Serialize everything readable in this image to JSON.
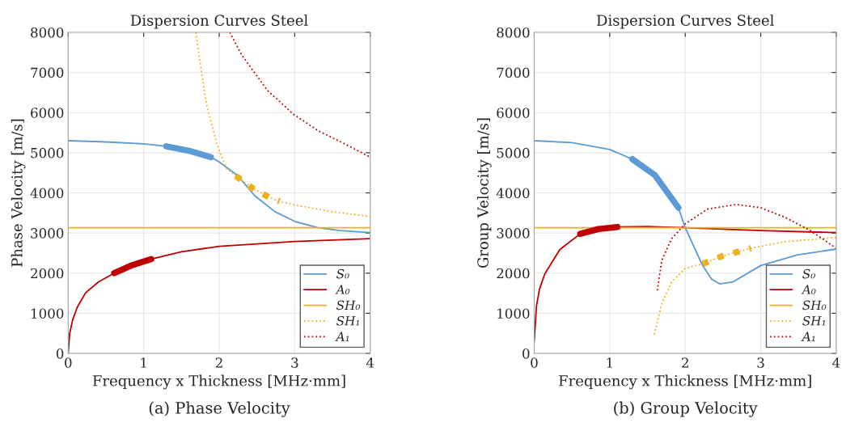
{
  "chart_data": [
    {
      "type": "line",
      "title": "Dispersion Curves Steel",
      "xlabel": "Frequency x Thickness [MHz·mm]",
      "ylabel": "Phase Velocity [m/s]",
      "xlim": [
        0,
        4
      ],
      "ylim": [
        0,
        8000
      ],
      "xticks": [
        0,
        1,
        2,
        3,
        4
      ],
      "yticks": [
        0,
        1000,
        2000,
        3000,
        4000,
        5000,
        6000,
        7000,
        8000
      ],
      "grid": true,
      "legend": "bottom right",
      "annotations": [
        "(a) Phase Velocity"
      ],
      "series": [
        {
          "name": "S₀",
          "color": "#5a9bd5",
          "line_style": "solid",
          "x": [
            0,
            0.5,
            1,
            1.3,
            1.6,
            1.89,
            2.0,
            2.24,
            2.47,
            2.74,
            3.0,
            3.31,
            3.6,
            4
          ],
          "values": [
            5300,
            5270,
            5220,
            5160,
            5050,
            4890,
            4770,
            4440,
            3930,
            3530,
            3290,
            3130,
            3060,
            3010
          ]
        },
        {
          "name": "A₀",
          "color": "#c00000",
          "line_style": "solid",
          "x": [
            0,
            0.02,
            0.06,
            0.12,
            0.23,
            0.4,
            0.61,
            0.85,
            1.1,
            1.5,
            2,
            3,
            4
          ],
          "values": [
            0,
            500,
            840,
            1150,
            1510,
            1780,
            2000,
            2200,
            2350,
            2530,
            2670,
            2790,
            2860
          ]
        },
        {
          "name": "SH₀",
          "color": "#edb120",
          "line_style": "solid",
          "x": [
            0,
            4
          ],
          "values": [
            3130,
            3130
          ]
        },
        {
          "name": "SH₁",
          "color": "#edb120",
          "line_style": "dotted",
          "x": [
            1.69,
            1.75,
            1.83,
            1.97,
            2.1,
            2.22,
            2.44,
            2.67,
            2.8,
            3.0,
            3.5,
            4
          ],
          "values": [
            8000,
            7200,
            6220,
            5210,
            4600,
            4420,
            4120,
            3880,
            3790,
            3700,
            3530,
            3410
          ]
        },
        {
          "name": "A₁",
          "color": "#c00000",
          "line_style": "dotted",
          "x": [
            2.14,
            2.3,
            2.64,
            2.99,
            3.31,
            3.6,
            4
          ],
          "values": [
            8000,
            7430,
            6550,
            5950,
            5550,
            5280,
            4890
          ]
        },
        {
          "color": "#5a9bd5",
          "line_style": "solid",
          "x": [
            1.3,
            1.6,
            1.89
          ],
          "values": [
            5160,
            5050,
            4890
          ]
        },
        {
          "color": "#c00000",
          "line_style": "solid",
          "x": [
            0.61,
            0.85,
            1.1
          ],
          "values": [
            2000,
            2200,
            2350
          ]
        },
        {
          "color": "#edb120",
          "line_style": "dotted",
          "x": [
            2.22,
            2.44,
            2.67,
            2.8
          ],
          "values": [
            4420,
            4120,
            3880,
            3790
          ]
        }
      ]
    },
    {
      "type": "line",
      "title": "Dispersion Curves Steel",
      "xlabel": "Frequency x Thickness [MHz·mm]",
      "ylabel": "Group Velocity [m/s]",
      "xlim": [
        0,
        4
      ],
      "ylim": [
        0,
        8000
      ],
      "xticks": [
        0,
        1,
        2,
        3,
        4
      ],
      "yticks": [
        0,
        1000,
        2000,
        3000,
        4000,
        5000,
        6000,
        7000,
        8000
      ],
      "grid": true,
      "legend": "bottom right",
      "annotations": [
        "(b) Group Velocity"
      ],
      "series": [
        {
          "name": "S₀",
          "color": "#5a9bd5",
          "line_style": "solid",
          "x": [
            0,
            0.5,
            1,
            1.3,
            1.6,
            1.91,
            2.0,
            2.23,
            2.35,
            2.46,
            2.63,
            3,
            3.48,
            4
          ],
          "values": [
            5300,
            5250,
            5080,
            4840,
            4440,
            3630,
            3130,
            2190,
            1850,
            1730,
            1780,
            2190,
            2450,
            2600
          ]
        },
        {
          "name": "A₀",
          "color": "#c00000",
          "line_style": "solid",
          "x": [
            0,
            0.03,
            0.07,
            0.14,
            0.34,
            0.61,
            0.85,
            1.1,
            1.5,
            2,
            3,
            4
          ],
          "values": [
            300,
            1180,
            1600,
            1980,
            2590,
            2980,
            3100,
            3150,
            3160,
            3130,
            3060,
            3010
          ]
        },
        {
          "name": "SH₀",
          "color": "#edb120",
          "line_style": "solid",
          "x": [
            0,
            4
          ],
          "values": [
            3130,
            3130
          ]
        },
        {
          "name": "SH₁",
          "color": "#edb120",
          "line_style": "dotted",
          "x": [
            1.59,
            1.69,
            1.82,
            2.0,
            2.23,
            2.48,
            2.73,
            2.87,
            3.31,
            4
          ],
          "values": [
            470,
            1240,
            1780,
            2120,
            2230,
            2420,
            2550,
            2620,
            2780,
            2890
          ]
        },
        {
          "name": "A₁",
          "color": "#c00000",
          "line_style": "dotted",
          "x": [
            1.63,
            1.69,
            1.82,
            2.0,
            2.3,
            2.68,
            3.0,
            3.31,
            3.65,
            4
          ],
          "values": [
            1570,
            2320,
            2860,
            3230,
            3600,
            3710,
            3630,
            3400,
            3070,
            2620
          ]
        },
        {
          "color": "#5a9bd5",
          "line_style": "solid",
          "x": [
            1.3,
            1.6,
            1.91
          ],
          "values": [
            4840,
            4440,
            3630
          ]
        },
        {
          "color": "#c00000",
          "line_style": "solid",
          "x": [
            0.61,
            0.85,
            1.1
          ],
          "values": [
            2980,
            3100,
            3150
          ]
        },
        {
          "color": "#edb120",
          "line_style": "dotted",
          "x": [
            2.23,
            2.48,
            2.73,
            2.87
          ],
          "values": [
            2230,
            2420,
            2550,
            2620
          ]
        }
      ]
    }
  ]
}
